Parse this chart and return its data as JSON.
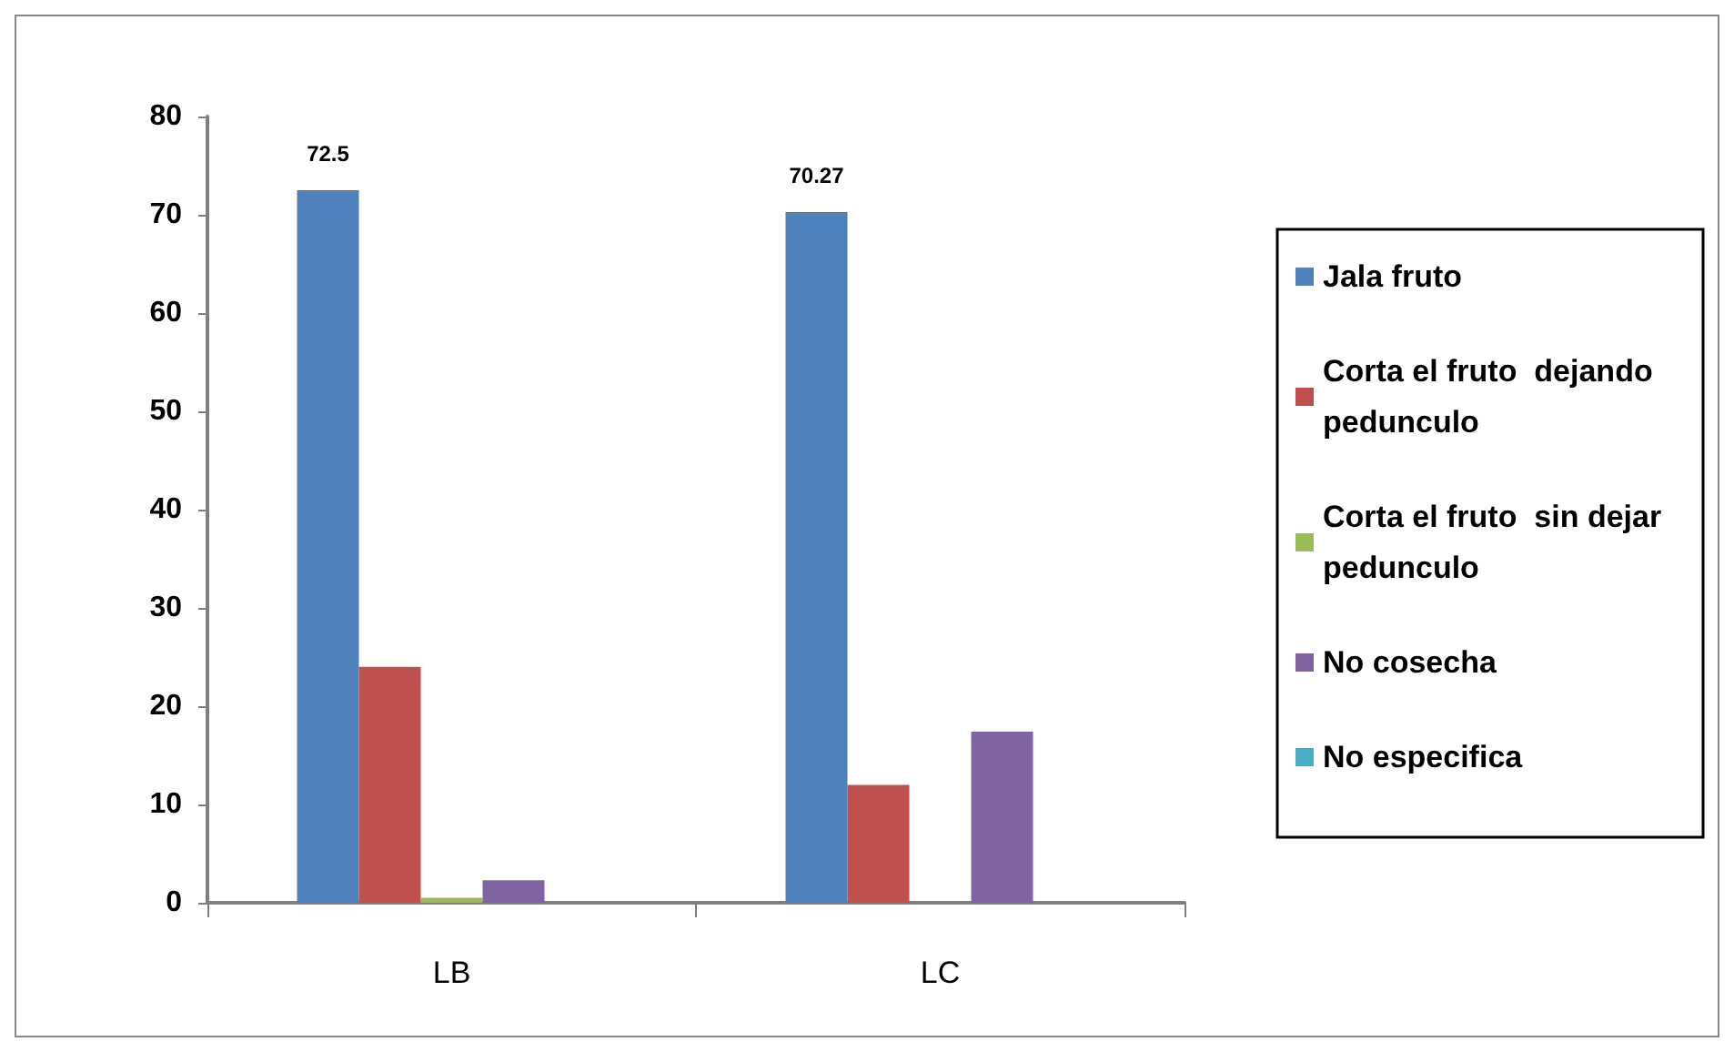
{
  "chart_data": {
    "type": "bar",
    "categories": [
      "LB",
      "LC"
    ],
    "series": [
      {
        "name": "Jala fruto",
        "color": "#4f81bd",
        "values": [
          72.5,
          70.27
        ],
        "value_labels": [
          "72.5",
          "70.27"
        ]
      },
      {
        "name": "Corta el fruto  dejando pedunculo",
        "color": "#c0504d",
        "values": [
          24,
          12
        ]
      },
      {
        "name": "Corta el fruto  sin dejar pedunculo",
        "color": "#9bbb59",
        "values": [
          0.5,
          0
        ]
      },
      {
        "name": "No cosecha",
        "color": "#8064a2",
        "values": [
          2.3,
          17.4
        ]
      },
      {
        "name": "No especifica",
        "color": "#4bacc6",
        "values": [
          0,
          0
        ]
      }
    ],
    "ylim": [
      0,
      80
    ],
    "yticks": [
      0,
      10,
      20,
      30,
      40,
      50,
      60,
      70,
      80
    ],
    "grid": false,
    "legend": "right"
  }
}
